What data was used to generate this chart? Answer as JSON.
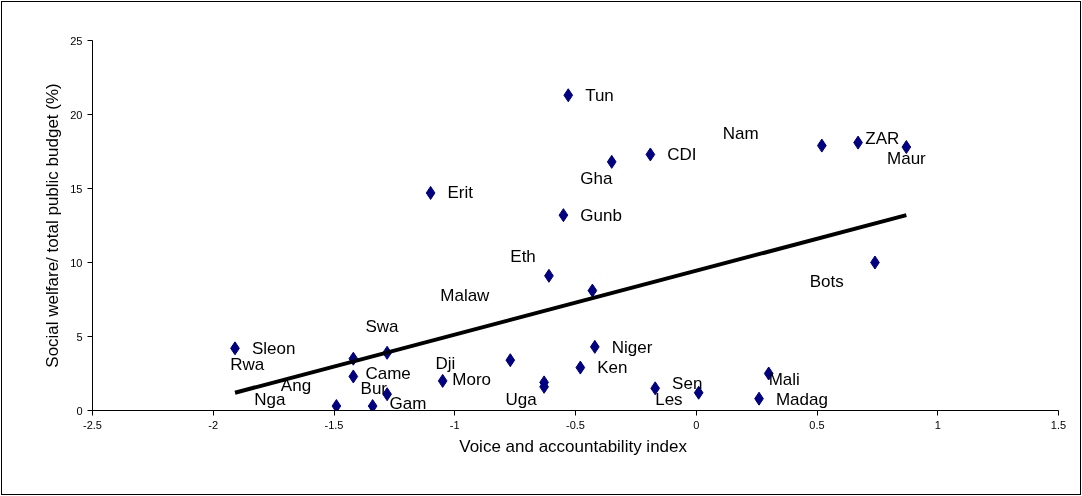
{
  "chart_data": {
    "type": "scatter",
    "xlabel": "Voice  and accountability index",
    "ylabel": "Social welfare/ total public budget (%)",
    "xlim": [
      -2.5,
      1.5
    ],
    "xticks": [
      -2.5,
      -2,
      -1.5,
      -1,
      -0.5,
      0,
      0.5,
      1,
      1.5
    ],
    "ylim": [
      0,
      25
    ],
    "yticks": [
      0,
      5,
      10,
      15,
      20,
      25
    ],
    "grid": false,
    "series": [
      {
        "type": "scatter",
        "marker": "diamond",
        "color": "#000080",
        "x": [
          -1.91,
          -1.42,
          -1.28,
          -1.42,
          -1.28,
          -1.49,
          -1.34,
          -1.05,
          -0.77,
          -0.63,
          -0.63,
          -0.48,
          -0.42,
          -0.17,
          0.01,
          0.3,
          0.26,
          -0.53,
          -0.35,
          -0.19,
          -1.1,
          -0.55,
          -0.61,
          -0.43,
          0.52,
          0.67,
          0.87,
          0.74
        ],
        "values": [
          4.2,
          3.5,
          3.9,
          2.3,
          1.1,
          0.3,
          0.3,
          2.0,
          3.4,
          1.9,
          1.6,
          2.9,
          4.3,
          1.5,
          1.2,
          2.5,
          0.8,
          21.3,
          16.8,
          17.3,
          14.7,
          13.2,
          9.1,
          8.1,
          17.9,
          18.1,
          17.8,
          10.0
        ]
      },
      {
        "type": "line",
        "marker": "none",
        "line_style": "solid",
        "color": "#000000",
        "x": [
          -1.91,
          0.87
        ],
        "values": [
          1.2,
          13.2
        ]
      }
    ],
    "annotations": [
      "Sleon",
      "Rwa",
      "Swa",
      "Came",
      "Ang",
      "Bur",
      "Nga",
      "Gam",
      "Dji",
      "Moro",
      "Uga",
      "Niger",
      "Ken",
      "Sen",
      "Les",
      "Mali",
      "Madag",
      "Tun",
      "Nam",
      "Gha",
      "CDI",
      "ZAR",
      "Maur",
      "Erit",
      "Gunb",
      "Eth",
      "Malaw",
      "Bots"
    ]
  }
}
